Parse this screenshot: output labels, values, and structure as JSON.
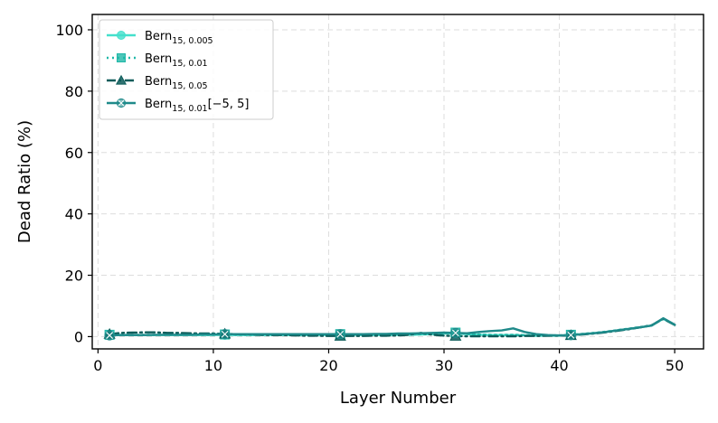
{
  "chart_data": {
    "type": "line",
    "xlabel": "Layer Number",
    "ylabel": "Dead Ratio (%)",
    "xlim": [
      -0.5,
      52.5
    ],
    "ylim": [
      -4,
      105
    ],
    "xticks": [
      0,
      10,
      20,
      30,
      40,
      50
    ],
    "yticks": [
      0,
      20,
      40,
      60,
      80,
      100
    ],
    "grid": true,
    "legend_position": "top-left",
    "x": [
      1,
      2,
      3,
      4,
      5,
      6,
      7,
      8,
      9,
      10,
      11,
      12,
      13,
      14,
      15,
      16,
      17,
      18,
      19,
      20,
      21,
      22,
      23,
      24,
      25,
      26,
      27,
      28,
      29,
      30,
      31,
      32,
      33,
      34,
      35,
      36,
      37,
      38,
      39,
      40,
      41,
      42,
      43,
      44,
      45,
      46,
      47,
      48,
      49,
      50
    ],
    "series": [
      {
        "name": "Bern",
        "name_sub": "15, 0.005",
        "name_suffix": "",
        "color": "#44e0cc",
        "linestyle": "solid",
        "marker": "circle",
        "markevery": 10,
        "values": [
          0.5,
          0.5,
          0.5,
          0.5,
          0.5,
          0.5,
          0.5,
          0.5,
          0.5,
          0.5,
          0.6,
          0.5,
          0.5,
          0.5,
          0.5,
          0.5,
          0.5,
          0.5,
          0.5,
          0.5,
          0.7,
          0.6,
          0.5,
          0.5,
          0.5,
          0.6,
          0.6,
          0.7,
          0.8,
          1.0,
          1.1,
          0.8,
          0.6,
          0.5,
          0.5,
          0.5,
          0.4,
          0.3,
          0.3,
          0.3,
          0.5,
          0.8,
          1.1,
          1.5,
          2.0,
          2.5,
          3.0,
          3.6,
          5.8,
          3.8
        ]
      },
      {
        "name": "Bern",
        "name_sub": "15, 0.01",
        "name_suffix": "",
        "color": "#20b8a8",
        "linestyle": "dotted",
        "marker": "square",
        "markevery": 10,
        "values": [
          0.6,
          0.6,
          0.6,
          0.6,
          0.6,
          0.6,
          0.6,
          0.6,
          0.6,
          0.6,
          0.7,
          0.6,
          0.6,
          0.6,
          0.6,
          0.6,
          0.6,
          0.6,
          0.6,
          0.6,
          0.8,
          0.7,
          0.6,
          0.6,
          0.6,
          0.7,
          0.7,
          0.8,
          0.9,
          1.1,
          1.3,
          0.9,
          0.7,
          0.6,
          0.6,
          0.6,
          0.5,
          0.4,
          0.4,
          0.4,
          0.6,
          0.9,
          1.2,
          1.6,
          2.1,
          2.6,
          3.1,
          3.7,
          5.9,
          3.9
        ]
      },
      {
        "name": "Bern",
        "name_sub": "15, 0.05",
        "name_suffix": "",
        "color": "#0d5c5a",
        "linestyle": "dashdot",
        "marker": "triangle",
        "markevery": 10,
        "values": [
          0.8,
          1.2,
          1.3,
          1.4,
          1.4,
          1.2,
          1.2,
          1.1,
          1.0,
          1.0,
          0.9,
          0.8,
          0.7,
          0.6,
          0.5,
          0.5,
          0.4,
          0.3,
          0.3,
          0.2,
          0.2,
          0.2,
          0.2,
          0.3,
          0.3,
          0.4,
          0.6,
          1.2,
          0.6,
          0.3,
          0.2,
          0.1,
          0.1,
          0.1,
          0.1,
          0.1,
          0.2,
          0.2,
          0.3,
          0.3,
          0.4,
          0.7,
          1.0,
          1.4,
          1.9,
          2.4,
          3.0,
          3.7,
          5.8,
          3.8
        ]
      },
      {
        "name": "Bern",
        "name_sub": "15, 0.01",
        "name_suffix": "[−5, 5]",
        "color": "#1f8a8a",
        "linestyle": "solid",
        "marker": "crossed-circle",
        "markevery": 10,
        "values": [
          0.4,
          0.5,
          0.5,
          0.5,
          0.6,
          0.6,
          0.6,
          0.6,
          0.7,
          0.7,
          0.8,
          0.8,
          0.8,
          0.8,
          0.8,
          0.8,
          0.8,
          0.8,
          0.8,
          0.8,
          0.8,
          0.8,
          0.8,
          0.9,
          0.9,
          1.0,
          1.0,
          1.1,
          1.2,
          1.3,
          1.2,
          1.1,
          1.5,
          1.8,
          2.0,
          2.7,
          1.5,
          0.8,
          0.5,
          0.4,
          0.5,
          0.8,
          1.1,
          1.5,
          2.0,
          2.5,
          3.0,
          3.6,
          6.0,
          3.9
        ]
      }
    ]
  }
}
